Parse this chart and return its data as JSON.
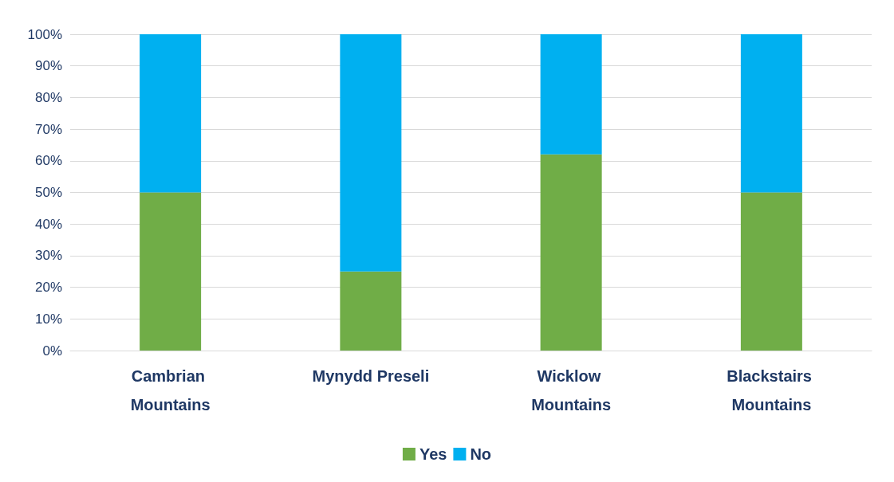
{
  "chart_data": {
    "type": "bar",
    "stacked": true,
    "categories": [
      "Cambrian Mountains",
      "Mynydd Preseli",
      "Wicklow Mountains",
      "Blackstairs Mountains"
    ],
    "series": [
      {
        "name": "Yes",
        "color": "#70ad47",
        "values": [
          50,
          25,
          62,
          50
        ]
      },
      {
        "name": "No",
        "color": "#00b0f0",
        "values": [
          50,
          75,
          38,
          50
        ]
      }
    ],
    "ylim": [
      0,
      100
    ],
    "yticks": [
      {
        "value": 0,
        "label": "0%"
      },
      {
        "value": 10,
        "label": "10%"
      },
      {
        "value": 20,
        "label": "20%"
      },
      {
        "value": 30,
        "label": "30%"
      },
      {
        "value": 40,
        "label": "40%"
      },
      {
        "value": 50,
        "label": "50%"
      },
      {
        "value": 60,
        "label": "60%"
      },
      {
        "value": 70,
        "label": "70%"
      },
      {
        "value": 80,
        "label": "80%"
      },
      {
        "value": 90,
        "label": "90%"
      },
      {
        "value": 100,
        "label": "100%"
      }
    ],
    "grid": "y",
    "legend": "bottom"
  }
}
